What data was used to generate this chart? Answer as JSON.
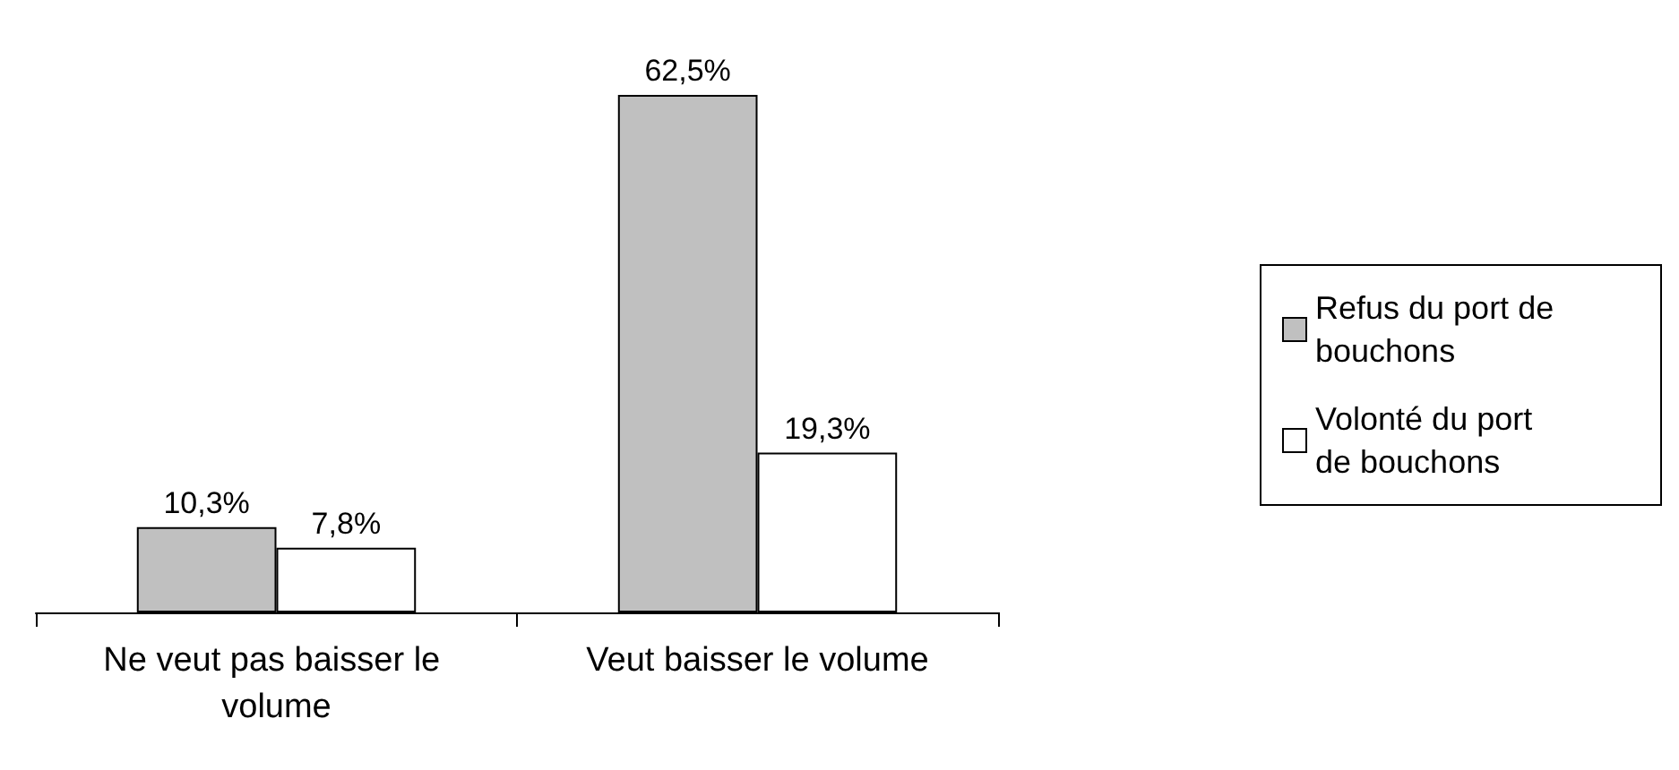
{
  "chart_data": {
    "type": "bar",
    "categories": [
      "Ne veut pas baisser le volume",
      "Veut baisser le volume"
    ],
    "series": [
      {
        "name": "Refus du port de bouchons",
        "color": "#c0c0c0",
        "values": [
          10.3,
          62.5
        ],
        "value_labels": [
          "10,3%",
          "62,5%"
        ]
      },
      {
        "name": "Volonté du port de bouchons",
        "color": "#ffffff",
        "values": [
          7.8,
          19.3
        ],
        "value_labels": [
          "7,8%",
          "19,3%"
        ]
      }
    ],
    "legend": "right",
    "grid": false
  }
}
